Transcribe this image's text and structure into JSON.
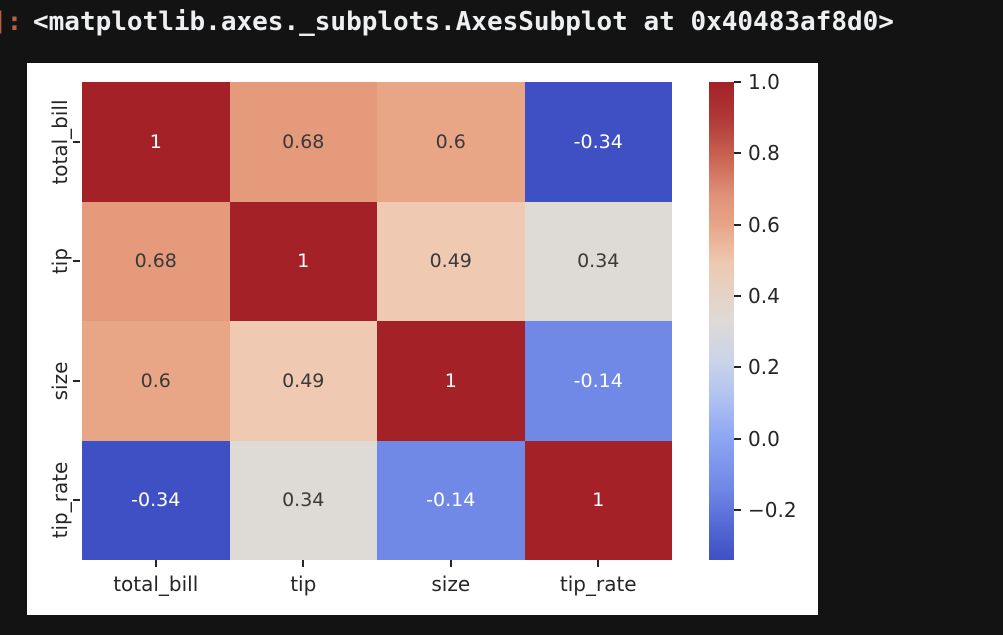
{
  "output": {
    "prompt": "]:",
    "repr_text": "<matplotlib.axes._subplots.AxesSubplot at 0x40483af8d0>"
  },
  "chart_data": {
    "type": "heatmap",
    "title": "",
    "x_tick_labels": [
      "total_bill",
      "tip",
      "size",
      "tip_rate"
    ],
    "y_tick_labels": [
      "total_bill",
      "tip",
      "size",
      "tip_rate"
    ],
    "matrix": [
      [
        1,
        0.68,
        0.6,
        -0.34
      ],
      [
        0.68,
        1,
        0.49,
        0.34
      ],
      [
        0.6,
        0.49,
        1,
        -0.14
      ],
      [
        -0.34,
        0.34,
        -0.14,
        1
      ]
    ],
    "colormap": "coolwarm",
    "vmin": -0.34,
    "vmax": 1.0,
    "value_colors": {
      "1": "#a42128",
      "0.68": "#e59a7c",
      "0.6": "#e9a687",
      "0.49": "#efc9b1",
      "0.34": "#dedad6",
      "-0.14": "#7088e6",
      "-0.34": "#3e50c3"
    },
    "light_text_values": [
      1,
      -0.34,
      -0.14
    ],
    "annot_colors": {
      "light": "#ffffff",
      "dark": "#3a3a3a"
    },
    "tick_label_color": "#262626",
    "legend_position": "right",
    "grid": false,
    "colorbar": {
      "ticks": [
        {
          "value": 1.0,
          "label": "1.0"
        },
        {
          "value": 0.8,
          "label": "0.8"
        },
        {
          "value": 0.6,
          "label": "0.6"
        },
        {
          "value": 0.4,
          "label": "0.4"
        },
        {
          "value": 0.2,
          "label": "0.2"
        },
        {
          "value": 0.0,
          "label": "0.0"
        },
        {
          "value": -0.2,
          "label": "−0.2"
        }
      ],
      "gradient_stops": [
        {
          "pos": 0,
          "color": "#a32128"
        },
        {
          "pos": 8,
          "color": "#b13a38"
        },
        {
          "pos": 17,
          "color": "#cd6a58"
        },
        {
          "pos": 24,
          "color": "#e0937a"
        },
        {
          "pos": 30,
          "color": "#e8a588"
        },
        {
          "pos": 38,
          "color": "#eec9b1"
        },
        {
          "pos": 50,
          "color": "#dedad6"
        },
        {
          "pos": 58,
          "color": "#ccd4e9"
        },
        {
          "pos": 66,
          "color": "#b0c3f0"
        },
        {
          "pos": 75,
          "color": "#8ba4f2"
        },
        {
          "pos": 85,
          "color": "#7088e6"
        },
        {
          "pos": 93,
          "color": "#5468d4"
        },
        {
          "pos": 100,
          "color": "#3e50c3"
        }
      ]
    }
  },
  "colors": {
    "page_bg": "#131313",
    "figure_bg": "#ffffff",
    "prompt": "#b5613c",
    "repr_text": "#edeff1"
  }
}
